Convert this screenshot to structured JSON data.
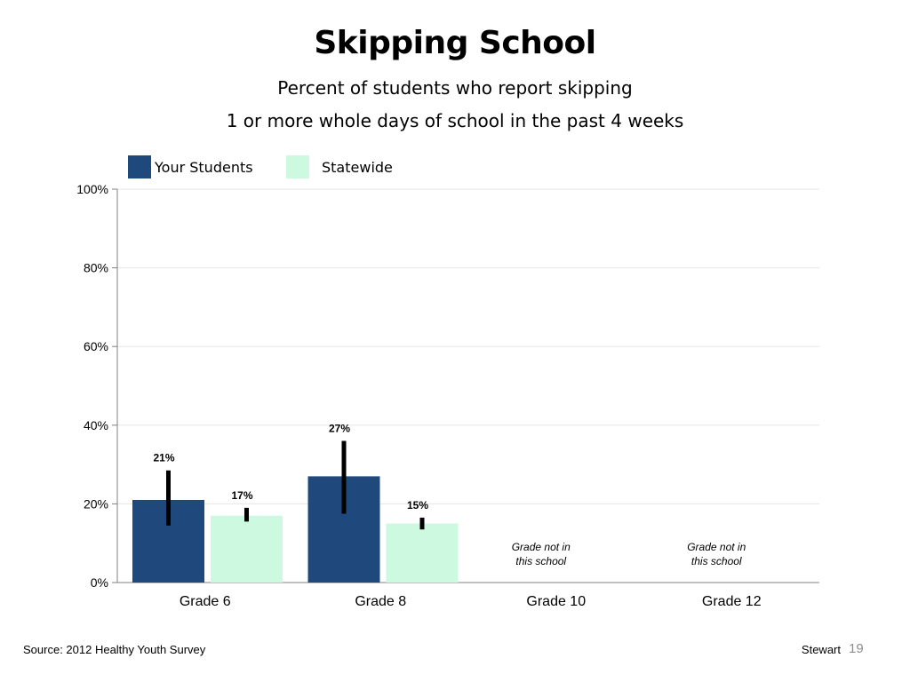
{
  "header": {
    "title": "Skipping School",
    "subtitle_line1": "Percent of students who report skipping",
    "subtitle_line2": "1 or more whole days of school in the past 4 weeks"
  },
  "legend": [
    {
      "label": "Your Students",
      "color": "#1f497d"
    },
    {
      "label": "Statewide",
      "color": "#ccf9e0"
    }
  ],
  "chart_data": {
    "type": "bar",
    "title": "Skipping School",
    "subtitle": "Percent of students who report skipping 1 or more whole days of school in the past 4 weeks",
    "categories": [
      "Grade 6",
      "Grade 8",
      "Grade 10",
      "Grade 12"
    ],
    "series": [
      {
        "name": "Your Students",
        "color": "#1f497d",
        "values": [
          21,
          27,
          null,
          null
        ],
        "labels": [
          "21%",
          "27%",
          "",
          ""
        ],
        "error": [
          [
            14.5,
            28.5
          ],
          [
            17.5,
            36
          ],
          null,
          null
        ]
      },
      {
        "name": "Statewide",
        "color": "#ccf9e0",
        "values": [
          17,
          15,
          null,
          null
        ],
        "labels": [
          "17%",
          "15%",
          "",
          ""
        ],
        "error": [
          [
            15.5,
            19
          ],
          [
            13.5,
            16.5
          ],
          null,
          null
        ]
      }
    ],
    "notes": [
      "",
      "",
      "Grade not in this school",
      "Grade not in this school"
    ],
    "yticks": [
      "0%",
      "20%",
      "40%",
      "60%",
      "80%",
      "100%"
    ],
    "ylim": [
      0,
      100
    ],
    "xlabel": "",
    "ylabel": "",
    "grid": true,
    "legend_position": "top-left"
  },
  "footer": {
    "source": "Source: 2012 Healthy Youth Survey",
    "author": "Stewart",
    "page": "19"
  }
}
